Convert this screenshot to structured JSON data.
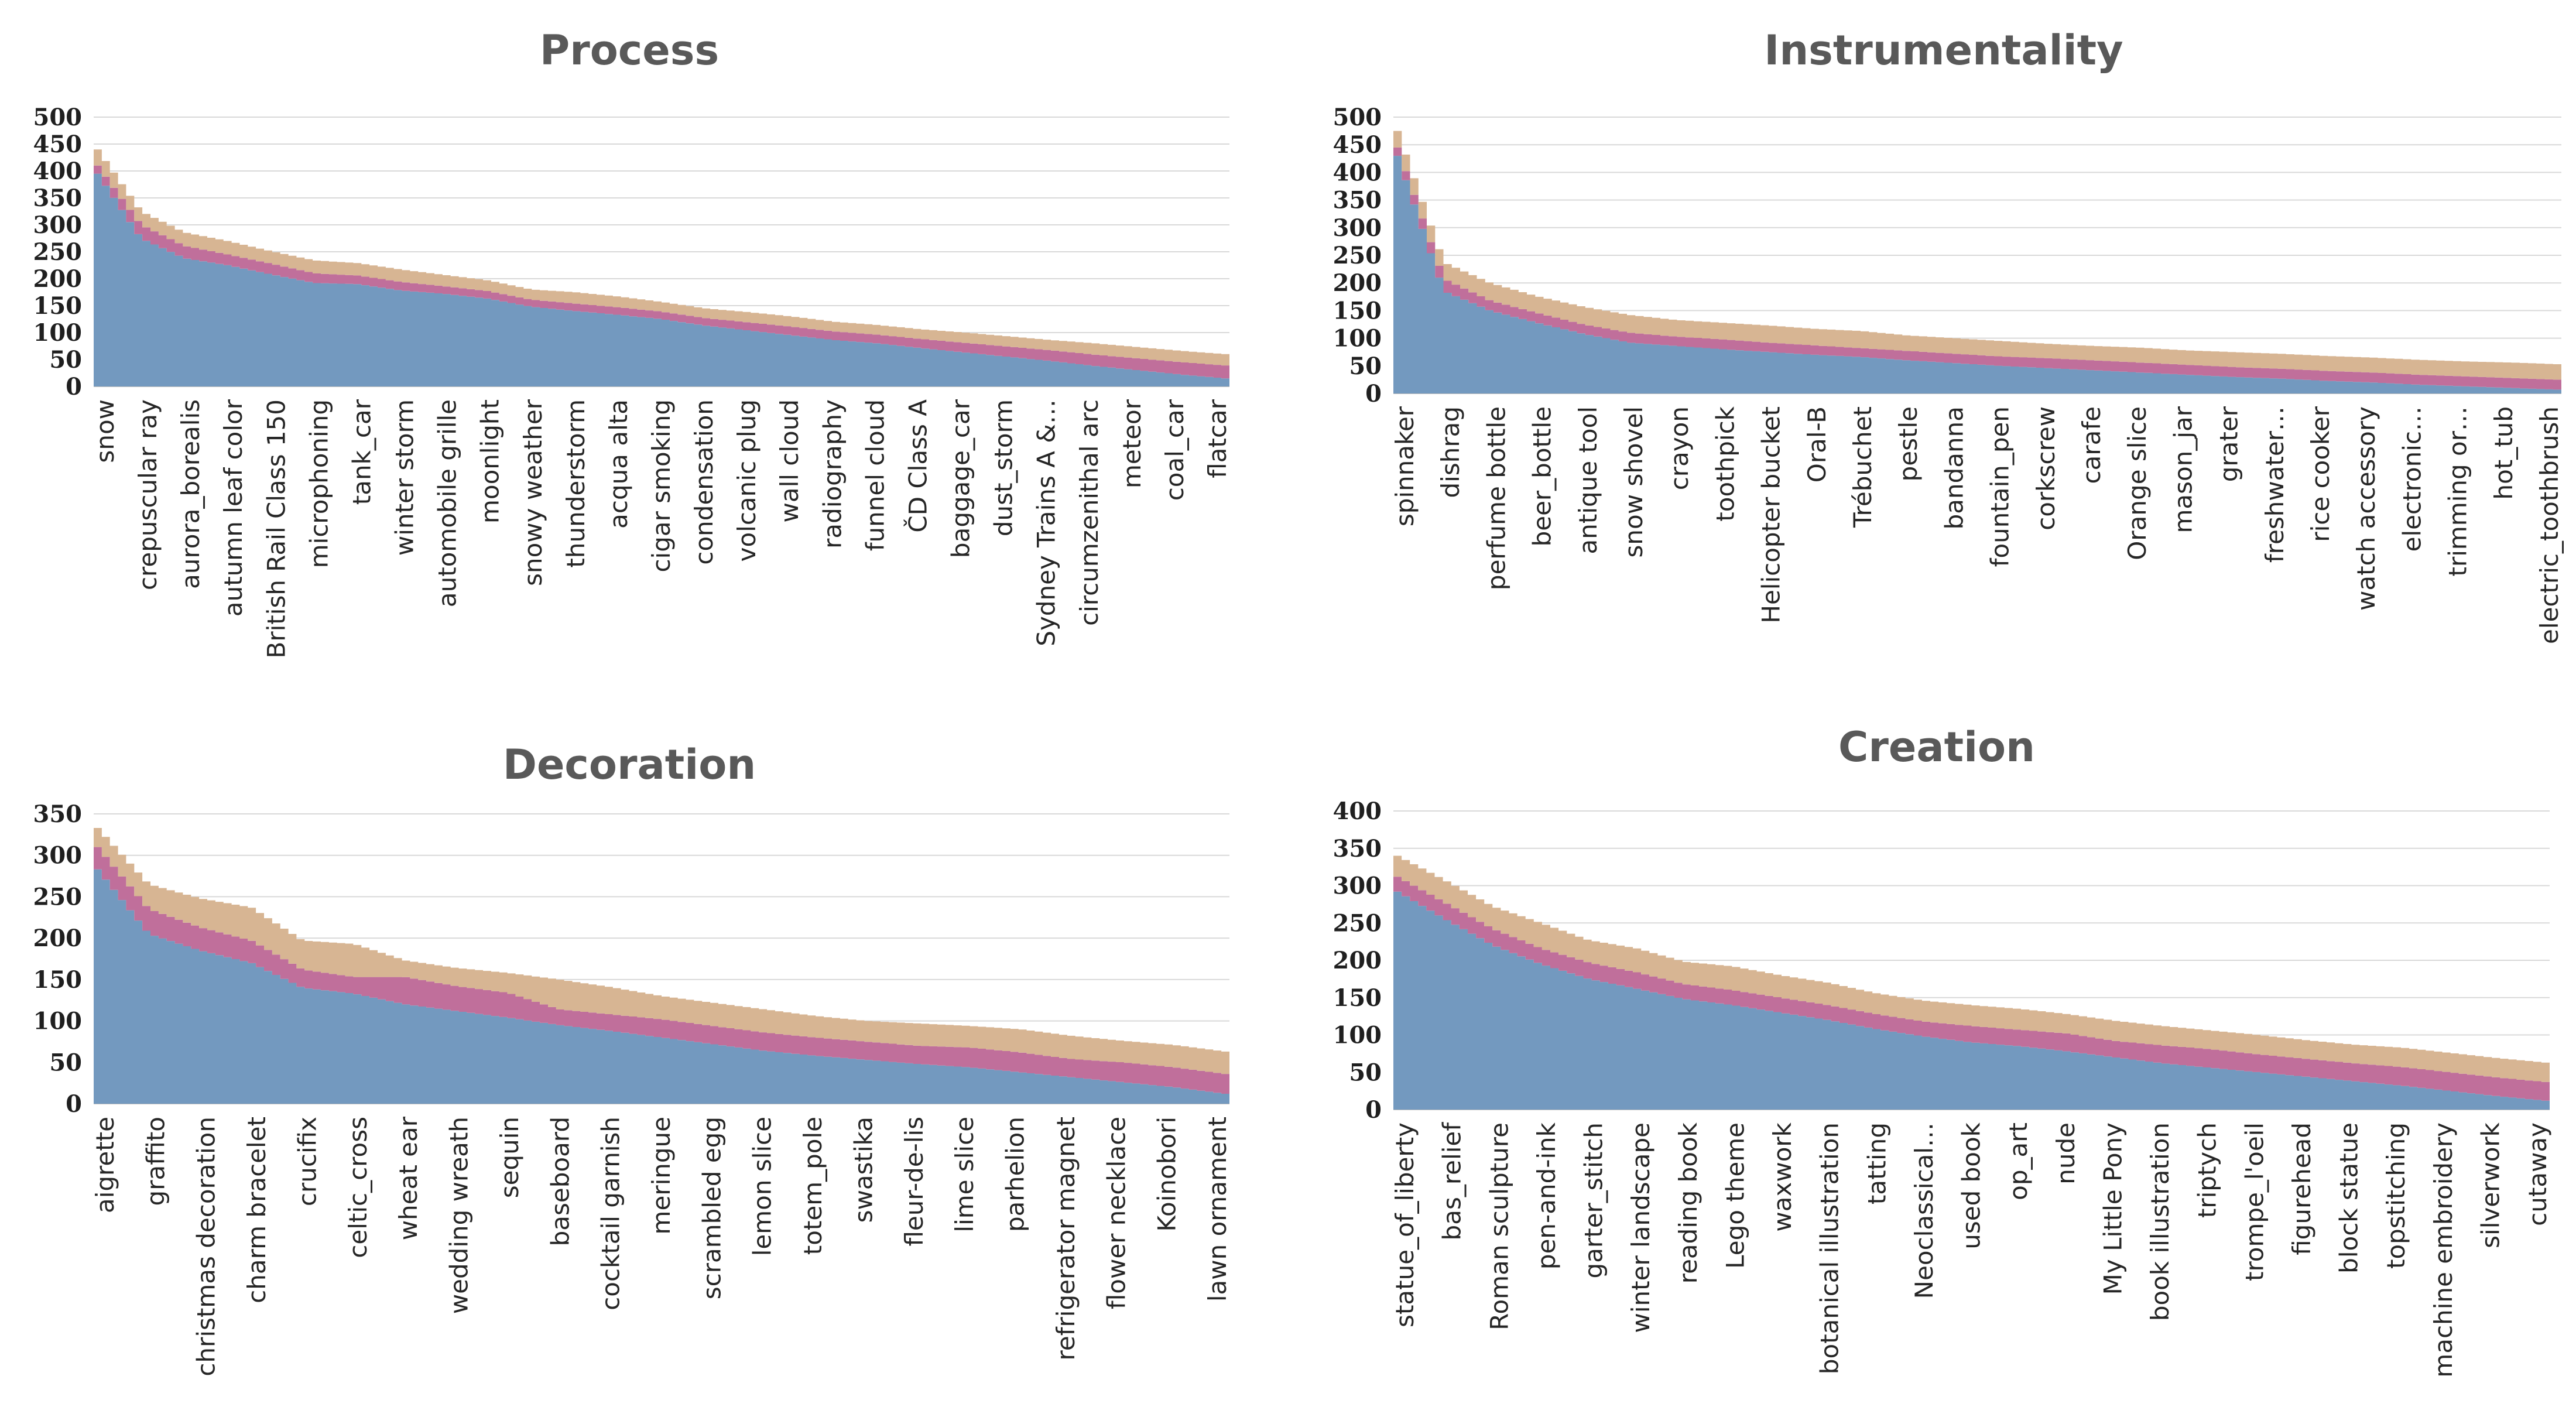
{
  "colors": {
    "bottom": "#7399bf",
    "middle": "#c06f9b",
    "top": "#d7b593"
  },
  "chart_data": [
    {
      "type": "area",
      "stacked": true,
      "title": "Process",
      "ylim": [
        0,
        500
      ],
      "yticks": [
        0,
        50,
        100,
        150,
        200,
        250,
        300,
        350,
        400,
        450,
        500
      ],
      "grid": true,
      "tick_labels": [
        "snow",
        "crepuscular ray",
        "aurora_borealis",
        "autumn leaf color",
        "British Rail Class 150",
        "microphoning",
        "tank_car",
        "winter storm",
        "automobile grille",
        "moonlight",
        "snowy weather",
        "thunderstorm",
        "acqua alta",
        "cigar smoking",
        "condensation",
        "volcanic plug",
        "wall cloud",
        "radiography",
        "funnel cloud",
        "ČD Class A",
        "baggage_car",
        "dust_storm",
        "Sydney Trains A &…",
        "circumzenithal arc",
        "meteor",
        "coal_car",
        "flatcar"
      ],
      "series": [
        {
          "values": [
            395,
            275,
            238,
            225,
            208,
            192,
            190,
            178,
            172,
            163,
            148,
            140,
            133,
            125,
            113,
            104,
            95,
            86,
            80,
            71,
            63,
            55,
            47,
            38,
            30,
            22,
            15
          ]
        },
        {
          "values": [
            15,
            25,
            23,
            20,
            20,
            18,
            16,
            16,
            14,
            14,
            13,
            14,
            14,
            14,
            14,
            15,
            16,
            16,
            16,
            17,
            18,
            19,
            20,
            21,
            22,
            23,
            24
          ]
        },
        {
          "values": [
            30,
            25,
            25,
            25,
            23,
            24,
            23,
            23,
            21,
            20,
            19,
            21,
            20,
            18,
            18,
            19,
            19,
            18,
            18,
            18,
            19,
            19,
            19,
            21,
            21,
            21,
            21
          ]
        }
      ]
    },
    {
      "type": "area",
      "stacked": true,
      "title": "Instrumentality",
      "ylim": [
        0,
        500
      ],
      "yticks": [
        0,
        50,
        100,
        150,
        200,
        250,
        300,
        350,
        400,
        450,
        500
      ],
      "grid": true,
      "tick_labels": [
        "spinnaker",
        "dishrag",
        "perfume bottle",
        "beer_bottle",
        "antique tool",
        "snow shovel",
        "crayon",
        "toothpick",
        "Helicopter bucket",
        "Oral-B",
        "Trébuchet",
        "pestle",
        "bandanna",
        "fountain_pen",
        "corkscrew",
        "carafe",
        "Orange slice",
        "mason_jar",
        "grater",
        "freshwater…",
        "rice cooker",
        "watch accessory",
        "electronic…",
        "trimming or…",
        "hot_tub",
        "electric_toothbrush"
      ],
      "series": [
        {
          "values": [
            430,
            185,
            150,
            128,
            108,
            92,
            86,
            80,
            75,
            70,
            66,
            60,
            55,
            50,
            46,
            42,
            38,
            34,
            30,
            27,
            23,
            20,
            16,
            13,
            10,
            7
          ]
        },
        {
          "values": [
            15,
            22,
            18,
            18,
            17,
            18,
            17,
            18,
            17,
            17,
            16,
            17,
            17,
            17,
            18,
            18,
            18,
            18,
            18,
            18,
            18,
            18,
            18,
            18,
            18,
            18
          ]
        },
        {
          "values": [
            30,
            30,
            32,
            30,
            32,
            32,
            30,
            30,
            31,
            30,
            31,
            28,
            28,
            28,
            26,
            26,
            27,
            26,
            27,
            27,
            27,
            27,
            27,
            27,
            28,
            28
          ]
        }
      ]
    },
    {
      "type": "area",
      "stacked": true,
      "title": "Decoration",
      "ylim": [
        0,
        350
      ],
      "yticks": [
        0,
        50,
        100,
        150,
        200,
        250,
        300,
        350
      ],
      "grid": true,
      "tick_labels": [
        "aigrette",
        "graffito",
        "christmas decoration",
        "charm bracelet",
        "crucifix",
        "celtic_cross",
        "wheat ear",
        "wedding wreath",
        "sequin",
        "baseboard",
        "cocktail garnish",
        "meringue",
        "scrambled egg",
        "lemon slice",
        "totem_pole",
        "swastika",
        "fleur-de-lis",
        "lime slice",
        "parhelion",
        "refrigerator magnet",
        "flower necklace",
        "Koinobori",
        "lawn ornament"
      ],
      "series": [
        {
          "values": [
            283,
            205,
            185,
            170,
            140,
            133,
            120,
            112,
            104,
            95,
            88,
            80,
            72,
            64,
            58,
            53,
            48,
            44,
            38,
            32,
            26,
            20,
            12
          ]
        },
        {
          "values": [
            27,
            30,
            28,
            27,
            22,
            20,
            33,
            30,
            30,
            19,
            20,
            22,
            22,
            22,
            22,
            22,
            22,
            24,
            24,
            22,
            24,
            24,
            24
          ]
        },
        {
          "values": [
            23,
            30,
            35,
            40,
            35,
            40,
            20,
            22,
            24,
            36,
            33,
            28,
            28,
            28,
            26,
            25,
            27,
            26,
            28,
            28,
            26,
            27,
            27
          ]
        }
      ]
    },
    {
      "type": "area",
      "stacked": true,
      "title": "Creation",
      "ylim": [
        0,
        400
      ],
      "yticks": [
        0,
        50,
        100,
        150,
        200,
        250,
        300,
        350,
        400
      ],
      "grid": true,
      "tick_labels": [
        "statue_of_liberty",
        "bas_relief",
        "Roman sculpture",
        "pen-and-ink",
        "garter_stitch",
        "winter landscape",
        "reading book",
        "Lego theme",
        "waxwork",
        "botanical illustration",
        "tatting",
        "Neoclassical…",
        "used book",
        "op_art",
        "nude",
        "My Little Pony",
        "book illustration",
        "triptych",
        "trompe_l'oeil",
        "figurehead",
        "block statue",
        "topstitching",
        "machine embroidery",
        "silverwork",
        "cutaway"
      ],
      "series": [
        {
          "values": [
            292,
            255,
            220,
            195,
            175,
            162,
            148,
            140,
            130,
            120,
            108,
            98,
            90,
            85,
            78,
            70,
            62,
            56,
            50,
            44,
            38,
            32,
            25,
            18,
            12
          ]
        },
        {
          "values": [
            20,
            22,
            22,
            21,
            22,
            22,
            20,
            20,
            20,
            20,
            20,
            20,
            22,
            22,
            24,
            22,
            24,
            25,
            24,
            24,
            24,
            25,
            25,
            25,
            25
          ]
        },
        {
          "values": [
            28,
            30,
            30,
            34,
            30,
            32,
            30,
            32,
            30,
            30,
            28,
            28,
            28,
            28,
            26,
            27,
            26,
            25,
            26,
            25,
            25,
            26,
            26,
            26,
            26
          ]
        }
      ]
    }
  ]
}
